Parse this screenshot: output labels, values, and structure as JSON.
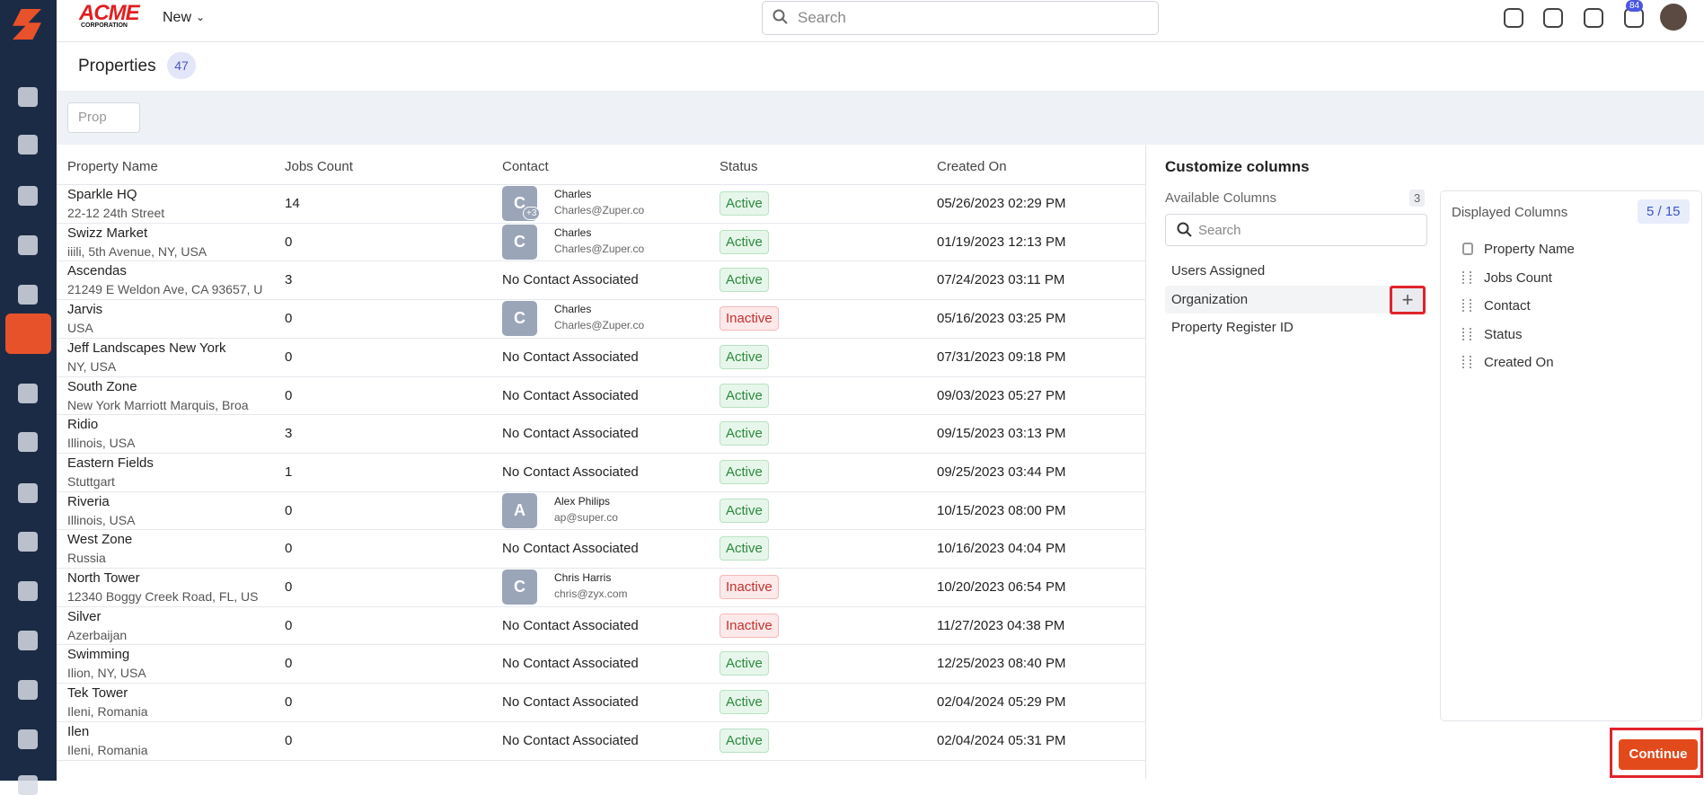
{
  "header": {
    "logo": "ACME",
    "logo_sub": "CORPORATION",
    "new_button": "New",
    "search_placeholder": "Search",
    "notification_count": "84"
  },
  "page": {
    "title": "Properties",
    "count": "47",
    "filter": "Prop"
  },
  "table": {
    "columns": [
      "Property Name",
      "Jobs Count",
      "Contact",
      "Status",
      "Created On"
    ],
    "rows": [
      {
        "name": "Sparkle HQ",
        "address": "22-12 24th Street",
        "jobs_count": 14,
        "avatar": "C",
        "avatar_extra": "+3",
        "contact": "Charles",
        "email": "Charles@Zuper.co",
        "status": "Active",
        "created_on": "05/26/2023 02:29 PM"
      },
      {
        "name": "Swizz Market",
        "address": "iiili, 5th Avenue, NY, USA",
        "jobs_count": 0,
        "avatar": "C",
        "contact": "Charles",
        "email": "Charles@Zuper.co",
        "status": "Active",
        "created_on": "01/19/2023 12:13 PM"
      },
      {
        "name": "Ascendas",
        "address": "21249 E Weldon Ave, CA 93657, U",
        "jobs_count": 3,
        "contact": "No Contact Associated",
        "status": "Active",
        "created_on": "07/24/2023 03:11 PM"
      },
      {
        "name": "Jarvis",
        "address": "USA",
        "jobs_count": 0,
        "avatar": "C",
        "contact": "Charles",
        "email": "Charles@Zuper.co",
        "status": "Inactive",
        "created_on": "05/16/2023 03:25 PM"
      },
      {
        "name": "Jeff Landscapes New York",
        "address": "NY, USA",
        "jobs_count": 0,
        "contact": "No Contact Associated",
        "status": "Active",
        "created_on": "07/31/2023 09:18 PM"
      },
      {
        "name": "South Zone",
        "address": "New York Marriott Marquis, Broa",
        "jobs_count": 0,
        "contact": "No Contact Associated",
        "status": "Active",
        "created_on": "09/03/2023 05:27 PM"
      },
      {
        "name": "Ridio",
        "address": "Illinois, USA",
        "jobs_count": 3,
        "contact": "No Contact Associated",
        "status": "Active",
        "created_on": "09/15/2023 03:13 PM"
      },
      {
        "name": "Eastern Fields",
        "address": "Stuttgart",
        "jobs_count": 1,
        "contact": "No Contact Associated",
        "status": "Active",
        "created_on": "09/25/2023 03:44 PM"
      },
      {
        "name": "Riveria",
        "address": "Illinois, USA",
        "jobs_count": 0,
        "avatar": "A",
        "contact": "Alex Philips",
        "email": "ap@super.co",
        "status": "Active",
        "created_on": "10/15/2023 08:00 PM"
      },
      {
        "name": "West Zone",
        "address": "Russia",
        "jobs_count": 0,
        "contact": "No Contact Associated",
        "status": "Active",
        "created_on": "10/16/2023 04:04 PM"
      },
      {
        "name": "North Tower",
        "address": "12340 Boggy Creek Road, FL, US",
        "jobs_count": 0,
        "avatar": "C",
        "contact": "Chris Harris",
        "email": "chris@zyx.com",
        "status": "Inactive",
        "created_on": "10/20/2023 06:54 PM"
      },
      {
        "name": "Silver",
        "address": "Azerbaijan",
        "jobs_count": 0,
        "contact": "No Contact Associated",
        "status": "Inactive",
        "created_on": "11/27/2023 04:38 PM"
      },
      {
        "name": "Swimming",
        "address": "Ilion, NY, USA",
        "jobs_count": 0,
        "contact": "No Contact Associated",
        "status": "Active",
        "created_on": "12/25/2023 08:40 PM"
      },
      {
        "name": "Tek Tower",
        "address": "Ileni, Romania",
        "jobs_count": 0,
        "contact": "No Contact Associated",
        "status": "Active",
        "created_on": "02/04/2024 05:29 PM"
      },
      {
        "name": "Ilen",
        "address": "Ileni, Romania",
        "jobs_count": 0,
        "contact": "No Contact Associated",
        "status": "Active",
        "created_on": "02/04/2024 05:31 PM"
      }
    ]
  },
  "customize": {
    "title": "Customize columns",
    "available_title": "Available Columns",
    "available_count": "3",
    "search_placeholder": "Search",
    "available": [
      "Users Assigned",
      "Organization",
      "Property Register ID"
    ],
    "displayed_title": "Displayed Columns",
    "displayed_count": "5 / 15",
    "displayed": [
      "Property Name",
      "Jobs Count",
      "Contact",
      "Status",
      "Created On"
    ],
    "continue": "Continue"
  }
}
